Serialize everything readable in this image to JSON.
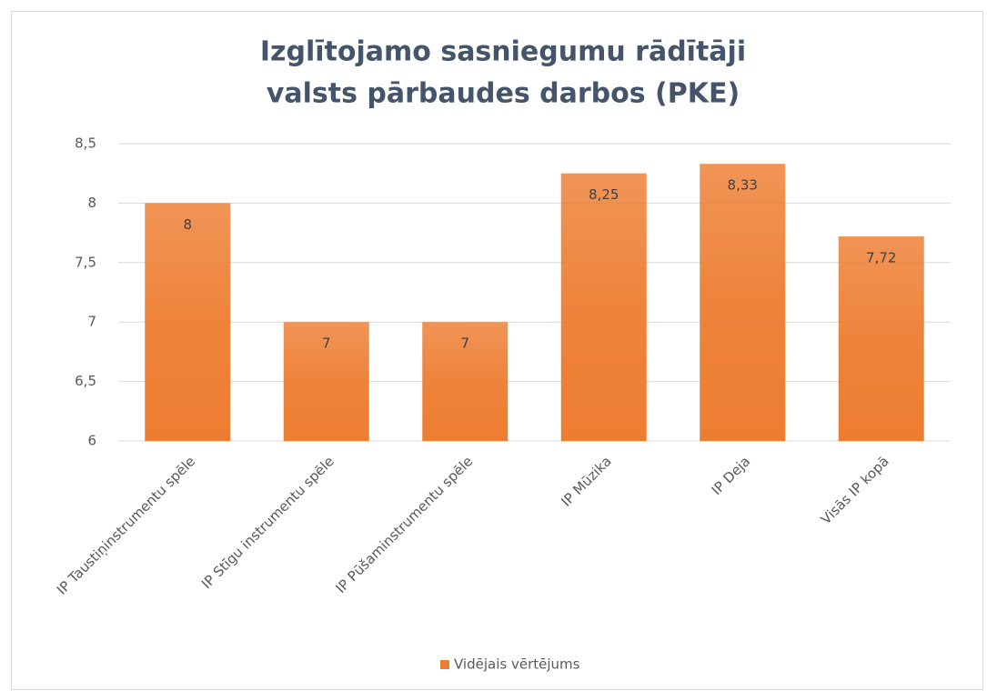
{
  "chart_data": {
    "type": "bar",
    "title": [
      "Izglītojamo sasniegumu rādītāji",
      "valsts pārbaudes darbos (PKE)"
    ],
    "categories": [
      "IP Taustiņinstrumentu spēle",
      "IP Stīgu instrumentu spēle",
      "IP Pūšaminstrumentu spēle",
      "IP Mūzika",
      "IP Deja",
      "Visās IP kopā"
    ],
    "series": [
      {
        "name": "Vidējais vērtējums",
        "color": "#ed7d31",
        "values": [
          8,
          7,
          7,
          8.25,
          8.33,
          7.72
        ],
        "value_labels": [
          "8",
          "7",
          "7",
          "8,25",
          "8,33",
          "7,72"
        ]
      }
    ],
    "ylim": [
      6,
      8.5
    ],
    "yticks": [
      6,
      {
        "value": 6.5,
        "label": "6,5"
      },
      7,
      {
        "value": 7.5,
        "label": "7,5"
      },
      8,
      {
        "value": 8.5,
        "label": "8,5"
      }
    ],
    "grid": true,
    "legend": "bottom"
  }
}
